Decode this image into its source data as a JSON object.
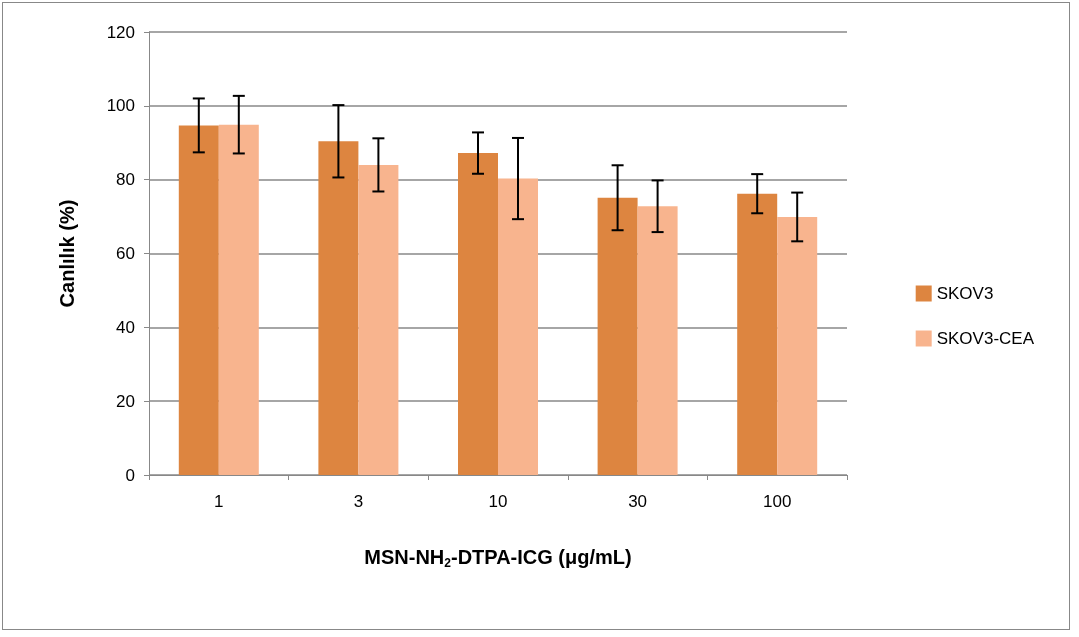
{
  "chart_data": {
    "type": "bar",
    "xlabel": "MSN-NH$_{2}$-DTPA-ICG (μg/mL)",
    "ylabel": "Canlılık (%)",
    "categories": [
      "1",
      "3",
      "10",
      "30",
      "100"
    ],
    "series": [
      {
        "name": "SKOV3",
        "color": "#dd8540",
        "values": [
          94.7,
          90.4,
          87.2,
          75.1,
          76.2
        ],
        "errors": [
          7.3,
          9.8,
          5.6,
          8.8,
          5.3
        ]
      },
      {
        "name": "SKOV3-CEA",
        "color": "#f8b48e",
        "values": [
          94.9,
          84.0,
          80.3,
          72.8,
          69.9
        ],
        "errors": [
          7.8,
          7.2,
          11,
          7,
          6.6
        ]
      }
    ],
    "ylim": [
      0,
      120
    ],
    "yticks": [
      0,
      20,
      40,
      60,
      80,
      100,
      120
    ],
    "grid": "y",
    "legend": "right"
  }
}
